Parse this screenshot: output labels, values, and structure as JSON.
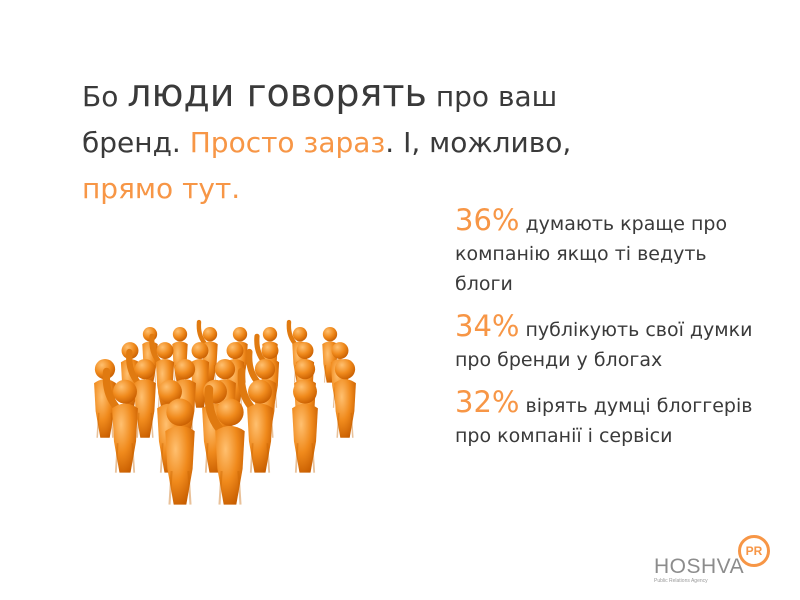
{
  "headline": {
    "p1": "Бо ",
    "p2": "люди говорять",
    "p3": " про ваш бренд.  ",
    "p4": "Просто зараз",
    "p5": ". І, можливо, ",
    "p6": "прямо тут."
  },
  "stats": [
    {
      "pct": "36%",
      "text": " думають краще про компанію якщо ті ведуть блоги"
    },
    {
      "pct": "34%",
      "text": " публікують свої думки про бренди у блогах"
    },
    {
      "pct": "32%",
      "text": " вірять думці блоггерів про компанії і сервіси"
    }
  ],
  "logo": {
    "name": "HOSHVA",
    "badge": "PR",
    "tagline": "Public Relations Agency"
  },
  "colors": {
    "accent": "#f79646",
    "text": "#3a3a3a",
    "logo_gray": "#8c8c8c"
  },
  "illustration": "crowd-of-orange-figures-raising-hands"
}
